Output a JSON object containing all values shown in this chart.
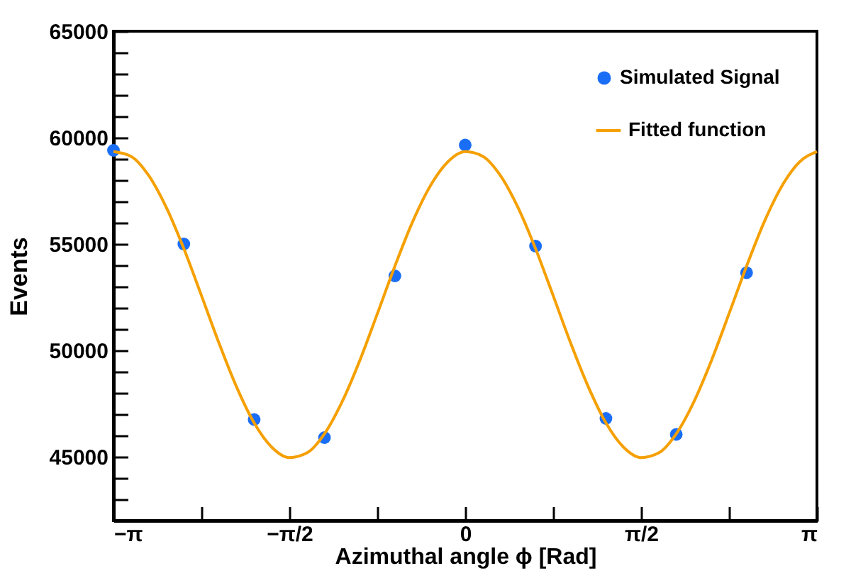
{
  "chart_data": {
    "type": "scatter",
    "xlabel": "Azimuthal angle ϕ [Rad]",
    "ylabel": "Events",
    "xlim": [
      -3.1416,
      3.1416
    ],
    "ylim": [
      42000,
      65000
    ],
    "xticks": [
      {
        "value": -3.1416,
        "label": "−π"
      },
      {
        "value": -2.35619,
        "label": null
      },
      {
        "value": -1.5708,
        "label": "−π/2"
      },
      {
        "value": -0.7854,
        "label": null
      },
      0,
      {
        "value": 0.7854,
        "label": null
      },
      {
        "value": 1.5708,
        "label": "π/2"
      },
      {
        "value": 2.35619,
        "label": null
      },
      {
        "value": 3.1416,
        "label": "π"
      }
    ],
    "yticks": [
      {
        "value": 43000,
        "label": null
      },
      {
        "value": 44000,
        "label": null
      },
      45000,
      {
        "value": 46000,
        "label": null
      },
      {
        "value": 47000,
        "label": null
      },
      {
        "value": 48000,
        "label": null
      },
      {
        "value": 49000,
        "label": null
      },
      50000,
      {
        "value": 51000,
        "label": null
      },
      {
        "value": 52000,
        "label": null
      },
      {
        "value": 53000,
        "label": null
      },
      {
        "value": 54000,
        "label": null
      },
      55000,
      {
        "value": 56000,
        "label": null
      },
      {
        "value": 57000,
        "label": null
      },
      {
        "value": 58000,
        "label": null
      },
      {
        "value": 59000,
        "label": null
      },
      60000,
      {
        "value": 61000,
        "label": null
      },
      {
        "value": 62000,
        "label": null
      },
      {
        "value": 63000,
        "label": null
      },
      {
        "value": 64000,
        "label": null
      },
      65000
    ],
    "grid": false,
    "legend": "top right",
    "marker": "circle",
    "series": [
      {
        "name": "Simulated Signal",
        "color": "#1a6ef5",
        "x": [
          -3.1416,
          -2.513,
          -1.885,
          -1.257,
          -0.628,
          0,
          0.628,
          1.257,
          1.885,
          2.513
        ],
        "values": [
          59400,
          55000,
          46750,
          45900,
          53500,
          59650,
          54900,
          46800,
          46050,
          53650
        ]
      },
      {
        "name": "Fitted function",
        "type": "line",
        "color": "#f5a000",
        "line_style": "solid",
        "marker": "none",
        "x": [
          -3.1416,
          -2.985,
          -2.827,
          -2.67,
          -2.513,
          -2.356,
          -2.199,
          -2.042,
          -1.885,
          -1.728,
          -1.571,
          -1.414,
          -1.257,
          -1.1,
          -0.942,
          -0.785,
          -0.628,
          -0.471,
          -0.314,
          -0.157,
          0,
          0.157,
          0.314,
          0.471,
          0.628,
          0.785,
          0.942,
          1.1,
          1.257,
          1.414,
          1.571,
          1.728,
          1.885,
          2.042,
          2.199,
          2.356,
          2.513,
          2.67,
          2.827,
          2.985,
          3.1416
        ],
        "values": [
          59340,
          59120,
          58220,
          56720,
          54780,
          52580,
          50340,
          48280,
          46590,
          45450,
          44960,
          45180,
          46080,
          47580,
          49520,
          51720,
          53960,
          56030,
          57710,
          58850,
          59340,
          59120,
          58220,
          56720,
          54780,
          52580,
          50340,
          48280,
          46590,
          45450,
          44960,
          45180,
          46080,
          47580,
          49520,
          51720,
          53960,
          56030,
          57710,
          58850,
          59340
        ]
      }
    ]
  }
}
